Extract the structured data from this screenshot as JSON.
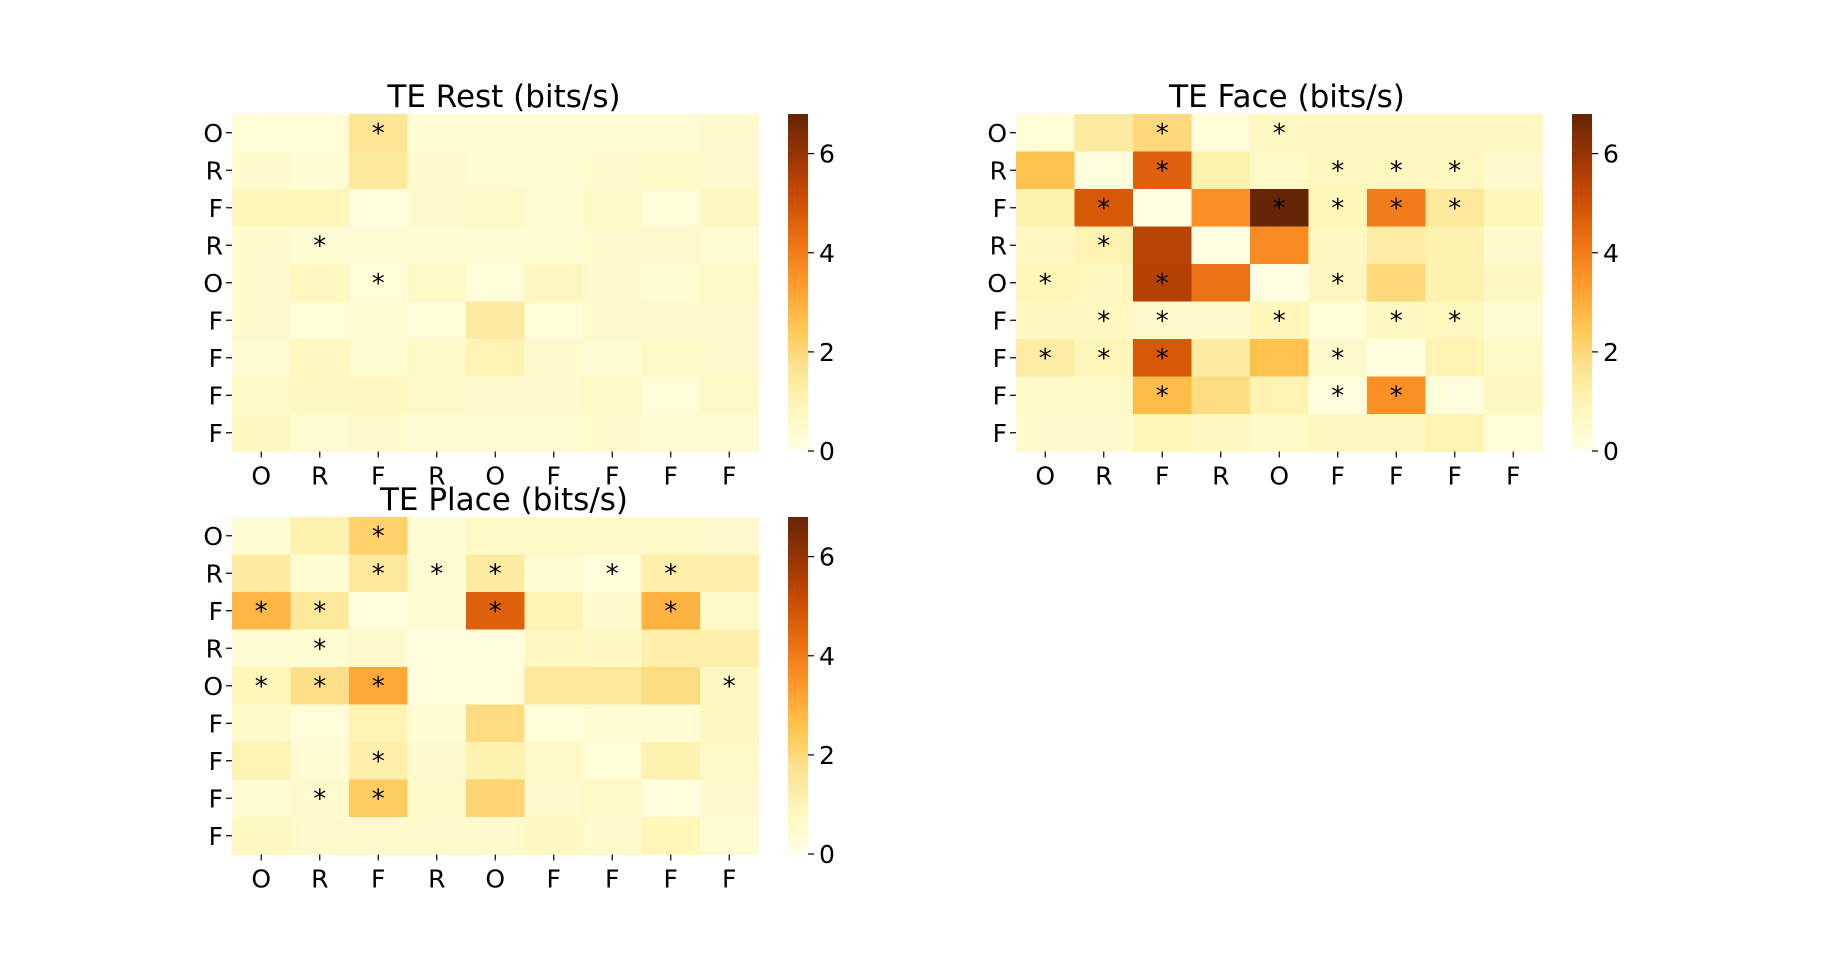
{
  "chart_data": [
    {
      "type": "heatmap",
      "title": "TE Rest (bits/s)",
      "x_tick_labels": [
        "O",
        "R",
        "F",
        "R",
        "O",
        "F",
        "F",
        "F",
        "F"
      ],
      "y_tick_labels": [
        "O",
        "R",
        "F",
        "R",
        "O",
        "F",
        "F",
        "F",
        "F"
      ],
      "colorbar": {
        "range": [
          0,
          6.8
        ],
        "ticks": [
          0,
          2,
          4,
          6
        ]
      },
      "values": [
        [
          0.3,
          0.3,
          1.6,
          0.4,
          0.4,
          0.4,
          0.4,
          0.4,
          0.5
        ],
        [
          0.5,
          0.4,
          1.5,
          0.5,
          0.4,
          0.4,
          0.5,
          0.6,
          0.5
        ],
        [
          0.9,
          0.9,
          0.2,
          0.5,
          0.6,
          0.4,
          0.6,
          0.3,
          0.8
        ],
        [
          0.5,
          0.4,
          0.4,
          0.4,
          0.4,
          0.4,
          0.5,
          0.5,
          0.4
        ],
        [
          0.5,
          0.8,
          0.3,
          0.6,
          0.3,
          0.8,
          0.5,
          0.4,
          0.6
        ],
        [
          0.5,
          0.3,
          0.4,
          0.3,
          1.4,
          0.3,
          0.5,
          0.5,
          0.5
        ],
        [
          0.4,
          0.7,
          0.4,
          0.6,
          1.0,
          0.5,
          0.4,
          0.6,
          0.5
        ],
        [
          0.6,
          0.7,
          0.7,
          0.6,
          0.5,
          0.5,
          0.6,
          0.3,
          0.6
        ],
        [
          0.7,
          0.4,
          0.5,
          0.4,
          0.4,
          0.4,
          0.5,
          0.4,
          0.4
        ]
      ],
      "significance": [
        [
          "",
          "",
          "*",
          "",
          "",
          "",
          "",
          "",
          ""
        ],
        [
          "",
          "",
          "",
          "",
          "",
          "",
          "",
          "",
          ""
        ],
        [
          "",
          "",
          "",
          "",
          "",
          "",
          "",
          "",
          ""
        ],
        [
          "",
          "*",
          "",
          "",
          "",
          "",
          "",
          "",
          ""
        ],
        [
          "",
          "",
          "*",
          "",
          "",
          "",
          "",
          "",
          ""
        ],
        [
          "",
          "",
          "",
          "",
          "",
          "",
          "",
          "",
          ""
        ],
        [
          "",
          "",
          "",
          "",
          "",
          "",
          "",
          "",
          ""
        ],
        [
          "",
          "",
          "",
          "",
          "",
          "",
          "",
          "",
          ""
        ],
        [
          "",
          "",
          "",
          "",
          "",
          "",
          "",
          "",
          ""
        ]
      ]
    },
    {
      "type": "heatmap",
      "title": "TE Face (bits/s)",
      "x_tick_labels": [
        "O",
        "R",
        "F",
        "R",
        "O",
        "F",
        "F",
        "F",
        "F"
      ],
      "y_tick_labels": [
        "O",
        "R",
        "F",
        "R",
        "O",
        "F",
        "F",
        "F",
        "F"
      ],
      "colorbar": {
        "range": [
          0,
          6.8
        ],
        "ticks": [
          0,
          2,
          4,
          6
        ]
      },
      "values": [
        [
          0.3,
          1.4,
          2.0,
          0.3,
          0.7,
          0.7,
          0.7,
          0.7,
          0.7
        ],
        [
          2.6,
          0.2,
          4.6,
          1.1,
          0.6,
          0.8,
          0.8,
          0.8,
          0.5
        ],
        [
          1.1,
          4.8,
          0.1,
          3.6,
          6.8,
          0.9,
          4.0,
          1.5,
          0.9
        ],
        [
          0.7,
          1.0,
          5.4,
          0.1,
          3.7,
          0.7,
          1.3,
          1.1,
          0.5
        ],
        [
          0.9,
          0.8,
          5.5,
          4.2,
          0.1,
          0.8,
          2.0,
          1.1,
          0.7
        ],
        [
          0.7,
          0.7,
          0.5,
          0.5,
          0.9,
          0.3,
          0.7,
          0.8,
          0.4
        ],
        [
          1.3,
          0.9,
          4.8,
          1.4,
          2.6,
          0.5,
          0.2,
          1.0,
          0.6
        ],
        [
          0.6,
          0.6,
          2.7,
          1.9,
          1.0,
          0.2,
          3.6,
          0.2,
          0.7
        ],
        [
          0.5,
          0.5,
          0.9,
          0.8,
          0.6,
          0.8,
          0.8,
          1.0,
          0.3
        ]
      ],
      "significance": [
        [
          "",
          "",
          "*",
          "",
          "*",
          "",
          "",
          "",
          ""
        ],
        [
          "",
          "",
          "*",
          "",
          "",
          "*",
          "*",
          "*",
          ""
        ],
        [
          "",
          "*",
          "",
          "",
          "*",
          "*",
          "*",
          "*",
          ""
        ],
        [
          "",
          "*",
          "",
          "",
          "",
          "",
          "",
          "",
          ""
        ],
        [
          "*",
          "",
          "*",
          "",
          "",
          "*",
          "",
          "",
          ""
        ],
        [
          "",
          "*",
          "*",
          "",
          "*",
          "",
          "*",
          "*",
          ""
        ],
        [
          "*",
          "*",
          "*",
          "",
          "",
          "*",
          "",
          "",
          ""
        ],
        [
          "",
          "",
          "*",
          "",
          "",
          "*",
          "*",
          "",
          ""
        ],
        [
          "",
          "",
          "",
          "",
          "",
          "",
          "",
          "",
          ""
        ]
      ]
    },
    {
      "type": "heatmap",
      "title": "TE Place (bits/s)",
      "x_tick_labels": [
        "O",
        "R",
        "F",
        "R",
        "O",
        "F",
        "F",
        "F",
        "F"
      ],
      "y_tick_labels": [
        "O",
        "R",
        "F",
        "R",
        "O",
        "F",
        "F",
        "F",
        "F"
      ],
      "colorbar": {
        "range": [
          0,
          6.8
        ],
        "ticks": [
          0,
          2,
          4,
          6
        ]
      },
      "values": [
        [
          0.4,
          1.1,
          2.2,
          0.4,
          0.6,
          0.6,
          0.6,
          0.6,
          0.5
        ],
        [
          1.4,
          0.4,
          1.5,
          0.4,
          1.4,
          0.4,
          0.3,
          1.2,
          1.2
        ],
        [
          2.8,
          1.5,
          0.2,
          0.4,
          4.6,
          1.0,
          0.5,
          2.9,
          0.6
        ],
        [
          0.4,
          0.4,
          0.5,
          0.2,
          0.2,
          0.8,
          0.7,
          1.2,
          1.2
        ],
        [
          0.9,
          1.8,
          3.1,
          0.2,
          0.2,
          1.5,
          1.5,
          1.9,
          0.7
        ],
        [
          0.6,
          0.3,
          1.0,
          0.4,
          1.9,
          0.3,
          0.4,
          0.4,
          0.7
        ],
        [
          1.0,
          0.4,
          1.2,
          0.5,
          1.1,
          0.6,
          0.3,
          1.1,
          0.6
        ],
        [
          0.4,
          0.5,
          2.3,
          0.6,
          2.1,
          0.5,
          0.6,
          0.2,
          0.5
        ],
        [
          0.7,
          0.5,
          0.5,
          0.5,
          0.5,
          0.7,
          0.5,
          0.9,
          0.4
        ]
      ],
      "significance": [
        [
          "",
          "",
          "*",
          "",
          "",
          "",
          "",
          "",
          ""
        ],
        [
          "",
          "",
          "*",
          "*",
          "*",
          "",
          "*",
          "*",
          ""
        ],
        [
          "*",
          "*",
          "",
          "",
          "*",
          "",
          "",
          "*",
          ""
        ],
        [
          "",
          "*",
          "",
          "",
          "",
          "",
          "",
          "",
          ""
        ],
        [
          "*",
          "*",
          "*",
          "",
          "",
          "",
          "",
          "",
          "*"
        ],
        [
          "",
          "",
          "",
          "",
          "",
          "",
          "",
          "",
          ""
        ],
        [
          "",
          "",
          "*",
          "",
          "",
          "",
          "",
          "",
          ""
        ],
        [
          "",
          "*",
          "*",
          "",
          "",
          "",
          "",
          "",
          ""
        ],
        [
          "",
          "",
          "",
          "",
          "",
          "",
          "",
          "",
          ""
        ]
      ]
    }
  ]
}
